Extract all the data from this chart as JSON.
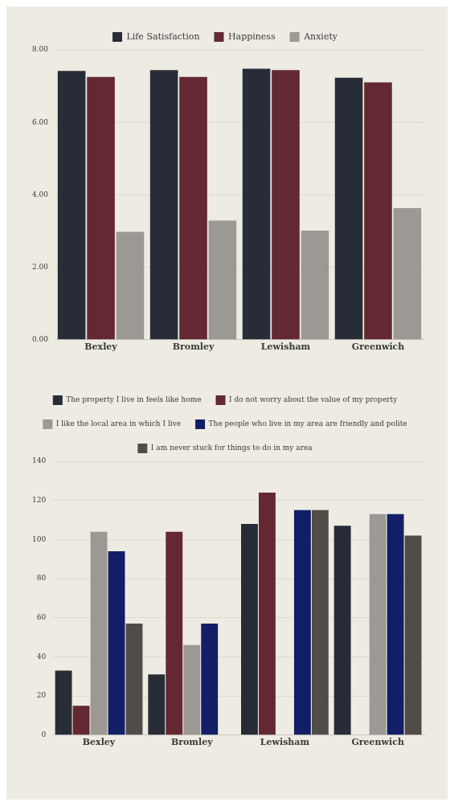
{
  "chart_data": [
    {
      "type": "bar",
      "categories": [
        "Bexley",
        "Bromley",
        "Lewisham",
        "Greenwich"
      ],
      "series": [
        {
          "name": "Life Satisfaction",
          "color": "#282c37",
          "values": [
            7.42,
            7.44,
            7.48,
            7.23
          ]
        },
        {
          "name": "Happiness",
          "color": "#642832",
          "values": [
            7.25,
            7.25,
            7.44,
            7.1
          ]
        },
        {
          "name": "Anxiety",
          "color": "#9c9894",
          "values": [
            2.98,
            3.29,
            3.01,
            3.63
          ]
        }
      ],
      "ylim": [
        0,
        8
      ],
      "yticks": [
        {
          "value": 0,
          "label": "0.00"
        },
        {
          "value": 2,
          "label": "2.00"
        },
        {
          "value": 4,
          "label": "4.00"
        },
        {
          "value": 6,
          "label": "6.00"
        },
        {
          "value": 8,
          "label": "8.00"
        }
      ],
      "grid": "y",
      "legend": "top"
    },
    {
      "type": "bar",
      "categories": [
        "Bexley",
        "Bromley",
        "Lewisham",
        "Greenwich"
      ],
      "series": [
        {
          "name": "The property I live in feels like home",
          "color": "#282c37",
          "values": [
            33,
            31,
            108,
            107
          ]
        },
        {
          "name": "I do not worry about the value of my property",
          "color": "#642832",
          "values": [
            15,
            104,
            124,
            null
          ]
        },
        {
          "name": "I like the local area in which I live",
          "color": "#9c9894",
          "values": [
            104,
            46,
            null,
            113
          ]
        },
        {
          "name": "The people who live in my area are friendly and polite",
          "color": "#121e66",
          "values": [
            94,
            57,
            115,
            113
          ]
        },
        {
          "name": "I am never stuck for things to do in my area",
          "color": "#504c48",
          "values": [
            57,
            null,
            115,
            102
          ]
        }
      ],
      "ylim": [
        0,
        140
      ],
      "yticks": [
        0,
        20,
        40,
        60,
        80,
        100,
        120,
        140
      ],
      "grid": "y",
      "legend": "top"
    }
  ]
}
